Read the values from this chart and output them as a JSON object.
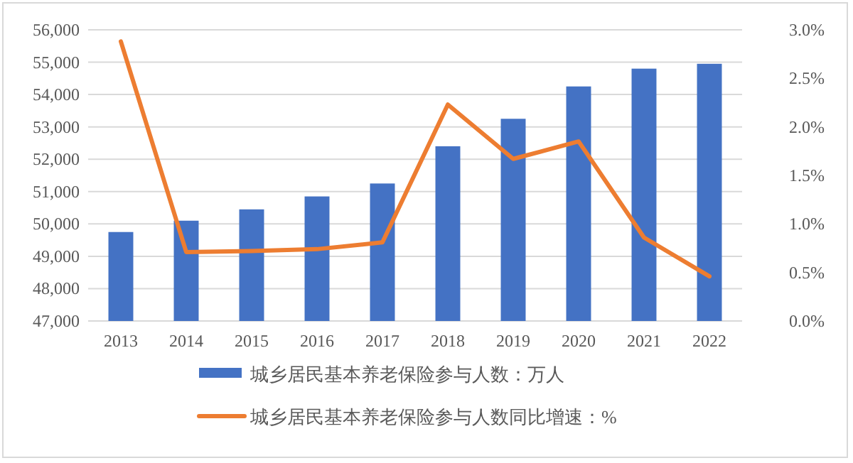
{
  "chart_data": {
    "type": "bar",
    "categories": [
      "2013",
      "2014",
      "2015",
      "2016",
      "2017",
      "2018",
      "2019",
      "2020",
      "2021",
      "2022"
    ],
    "series": [
      {
        "name": "城乡居民基本养老保险参与人数：万人",
        "color": "#4472c4",
        "values": [
          49750,
          50100,
          50450,
          50850,
          51250,
          52400,
          53250,
          54250,
          54800,
          54950
        ]
      },
      {
        "name": "城乡居民基本养老保险参与人数同比增速：%",
        "type": "line",
        "axis": "y2",
        "color": "#ed7d31",
        "values": [
          2.88,
          0.71,
          0.72,
          0.74,
          0.81,
          2.23,
          1.67,
          1.85,
          0.86,
          0.46
        ]
      }
    ],
    "ylim": [
      47000,
      56000
    ],
    "yticks": [
      {
        "value": 47000,
        "label": "47,000"
      },
      {
        "value": 48000,
        "label": "48,000"
      },
      {
        "value": 49000,
        "label": "49,000"
      },
      {
        "value": 50000,
        "label": "50,000"
      },
      {
        "value": 51000,
        "label": "51,000"
      },
      {
        "value": 52000,
        "label": "52,000"
      },
      {
        "value": 53000,
        "label": "53,000"
      },
      {
        "value": 54000,
        "label": "54,000"
      },
      {
        "value": 55000,
        "label": "55,000"
      },
      {
        "value": 56000,
        "label": "56,000"
      }
    ],
    "y2lim": [
      0,
      3
    ],
    "y2ticks": [
      {
        "value": 0,
        "label": "0.0%"
      },
      {
        "value": 0.5,
        "label": "0.5%"
      },
      {
        "value": 1,
        "label": "1.0%"
      },
      {
        "value": 1.5,
        "label": "1.5%"
      },
      {
        "value": 2,
        "label": "2.0%"
      },
      {
        "value": 2.5,
        "label": "2.5%"
      },
      {
        "value": 3,
        "label": "3.0%"
      }
    ],
    "grid": "y",
    "legend": "bottom",
    "marker": "none",
    "line_style": "solid"
  }
}
